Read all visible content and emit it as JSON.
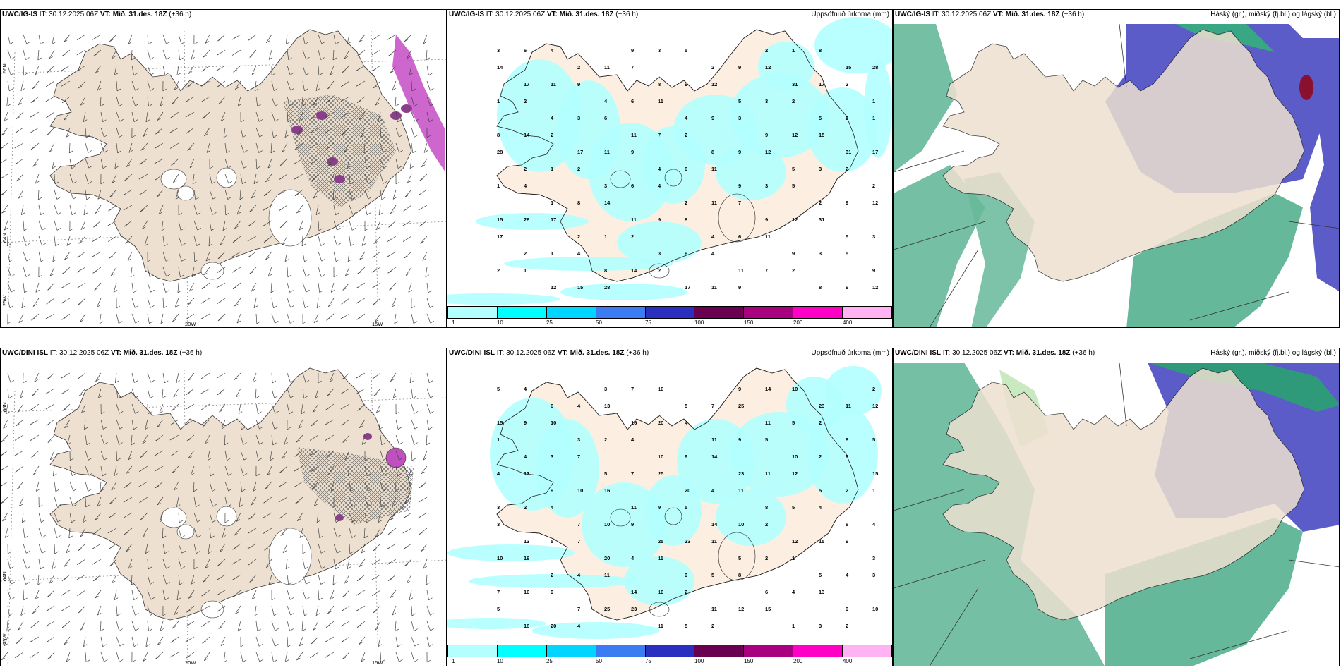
{
  "panels": [
    {
      "model": "UWC/IG-IS",
      "it": "IT: 30.12.2025 06Z",
      "vt": "VT: Mið. 31.des. 18Z",
      "lead": "(+36 h)",
      "type": "wind"
    },
    {
      "model": "UWC/IG-IS",
      "it": "IT: 30.12.2025 06Z",
      "vt": "VT: Mið. 31.des. 18Z",
      "lead": "(+36 h)",
      "type": "precip",
      "title": "Uppsöfnuð úrkoma (mm)"
    },
    {
      "model": "UWC/IG-IS",
      "it": "IT: 30.12.2025 06Z",
      "vt": "VT: Mið. 31.des. 18Z",
      "lead": "(+36 h)",
      "type": "cloud",
      "title": "Háský (gr.), miðský (fj.bl.) og lágský (bl.)"
    },
    {
      "model": "UWC/DINI ISL",
      "it": "IT: 30.12.2025 06Z",
      "vt": "VT: Mið. 31.des. 18Z",
      "lead": "(+36 h)",
      "type": "wind"
    },
    {
      "model": "UWC/DINI ISL",
      "it": "IT: 30.12.2025 06Z",
      "vt": "VT: Mið. 31.des. 18Z",
      "lead": "(+36 h)",
      "type": "precip",
      "title": "Uppsöfnuð úrkoma (mm)"
    },
    {
      "model": "UWC/DINI ISL",
      "it": "IT: 30.12.2025 06Z",
      "vt": "VT: Mið. 31.des. 18Z",
      "lead": "(+36 h)",
      "type": "cloud",
      "title": "Háský (gr.), miðský (fj.bl.) og lágský (bl.)"
    }
  ],
  "axis_labels": {
    "lat66": "66N",
    "lat64": "64N",
    "lon20": "20W",
    "lon15": "15W",
    "lon25": "25W",
    "lat65": "65N"
  },
  "legend": {
    "ticks": [
      "1",
      "10",
      "25",
      "50",
      "75",
      "100",
      "150",
      "200",
      "400"
    ],
    "colors": [
      "#b3ffff",
      "#00ffff",
      "#00d5ff",
      "#3c7cf2",
      "#2b2fbf",
      "#6a0050",
      "#a8007f",
      "#ff00c6",
      "#ffb3f3"
    ]
  },
  "precip_top": [
    "3",
    "6",
    "4",
    "9",
    "3",
    "5",
    "2",
    "1",
    "8",
    "14",
    "2",
    "11",
    "7",
    "2",
    "9",
    "12",
    "15",
    "28",
    "17",
    "11",
    "9",
    "8",
    "9",
    "12",
    "31",
    "17",
    "2",
    "1",
    "2",
    "4",
    "6",
    "11",
    "5",
    "3",
    "2",
    "1",
    "4"
  ],
  "precip_bottom": [
    "5",
    "4",
    "3",
    "7",
    "10",
    "9",
    "14",
    "10",
    "2",
    "6",
    "4",
    "13",
    "5",
    "7",
    "25",
    "23",
    "11",
    "12",
    "15",
    "9",
    "10",
    "16",
    "20",
    "4",
    "11",
    "5",
    "2",
    "1",
    "3",
    "2",
    "4",
    "11",
    "9",
    "5",
    "8"
  ],
  "colors": {
    "land": "#ede0d0",
    "land_precip": "#fcefe2",
    "precip": "#b3ffff",
    "mid_cloud": "#5c5cc8",
    "low_cloud": "#66b89a",
    "high_cloud": "#c9e9c0"
  }
}
